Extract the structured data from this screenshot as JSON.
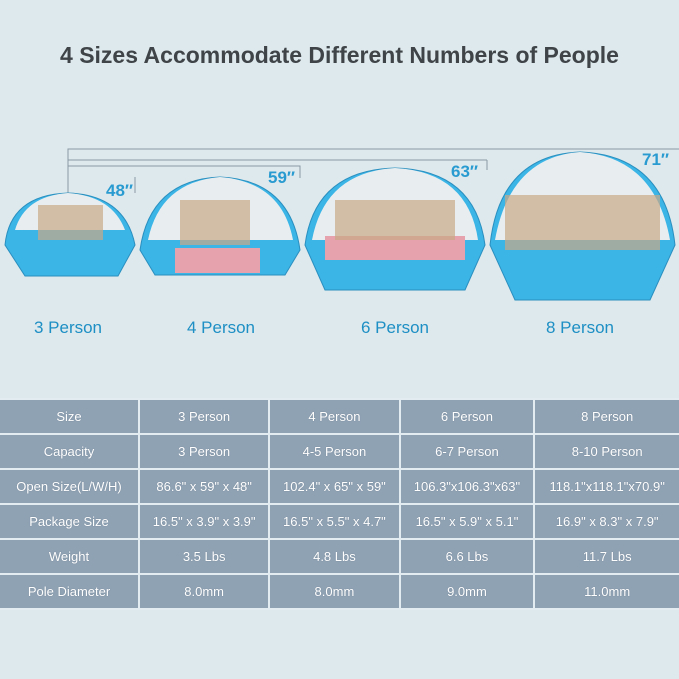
{
  "title": "4 Sizes Accommodate Different Numbers of People",
  "tents": [
    {
      "label": "3 Person",
      "height": "48″"
    },
    {
      "label": "4 Person",
      "height": "59″"
    },
    {
      "label": "6 Person",
      "height": "63″"
    },
    {
      "label": "8 Person",
      "height": "71″"
    }
  ],
  "colors": {
    "background": "#dde9ed",
    "tent_floor": "#3bb4e6",
    "tent_canopy": "#f2f4f5",
    "table": "#8fa2b4",
    "accent_text": "#1e8fc4"
  },
  "table": {
    "rows": [
      [
        "Size",
        "3 Person",
        "4 Person",
        "6 Person",
        "8 Person"
      ],
      [
        "Capacity",
        "3 Person",
        "4-5 Person",
        "6-7 Person",
        "8-10 Person"
      ],
      [
        "Open Size(L/W/H)",
        "86.6\" x 59\" x 48\"",
        "102.4\" x 65\" x 59\"",
        "106.3\"x106.3\"x63\"",
        "118.1\"x118.1\"x70.9\""
      ],
      [
        "Package Size",
        "16.5\" x 3.9\" x 3.9\"",
        "16.5\" x 5.5\" x 4.7\"",
        "16.5\" x 5.9\" x 5.1\"",
        "16.9\" x 8.3\" x 7.9\""
      ],
      [
        "Weight",
        "3.5 Lbs",
        "4.8 Lbs",
        "6.6 Lbs",
        "11.7 Lbs"
      ],
      [
        "Pole Diameter",
        "8.0mm",
        "8.0mm",
        "9.0mm",
        "11.0mm"
      ]
    ]
  }
}
